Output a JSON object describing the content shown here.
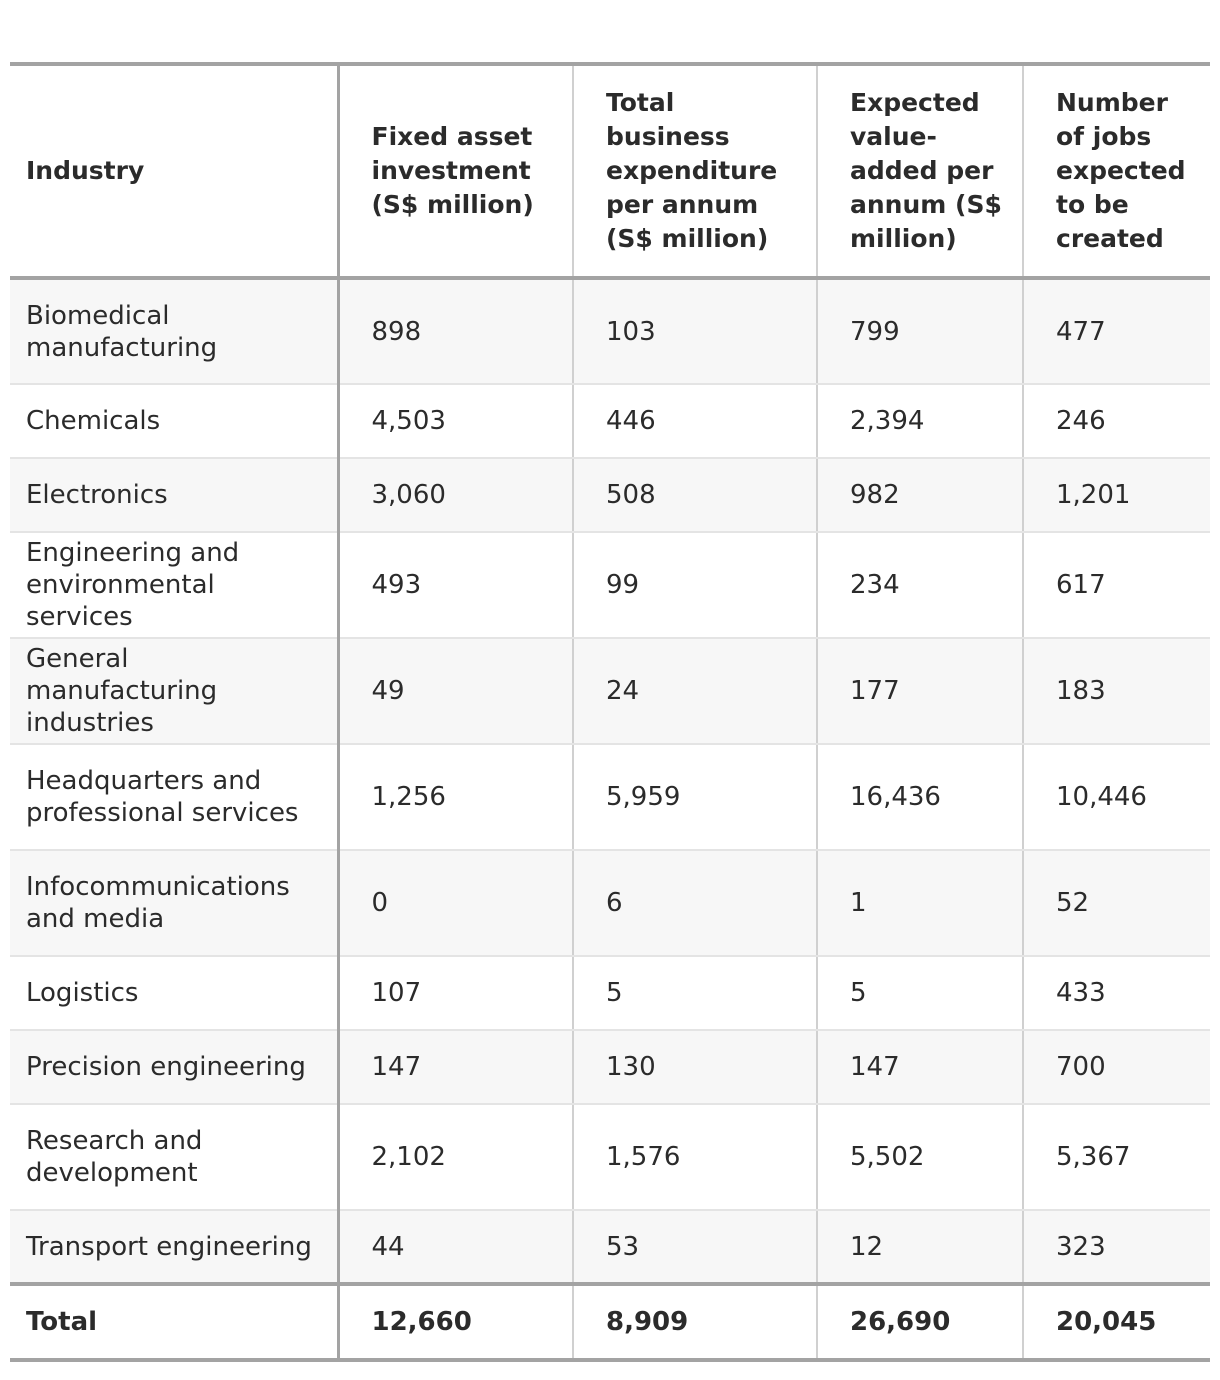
{
  "table": {
    "headers": [
      "Industry",
      "Fixed asset investment (S$ million)",
      "Total business expenditure per annum (S$ million)",
      "Expected value-added per annum (S$ million)",
      "Number of jobs expected to be created"
    ],
    "rows": [
      {
        "industry": "Biomedical manufacturing",
        "fai": "898",
        "tbe": "103",
        "eva": "799",
        "jobs": "477"
      },
      {
        "industry": "Chemicals",
        "fai": "4,503",
        "tbe": "446",
        "eva": "2,394",
        "jobs": "246"
      },
      {
        "industry": "Electronics",
        "fai": "3,060",
        "tbe": "508",
        "eva": "982",
        "jobs": "1,201"
      },
      {
        "industry": "Engineering and environmental services",
        "fai": "493",
        "tbe": "99",
        "eva": "234",
        "jobs": "617"
      },
      {
        "industry": "General manufacturing industries",
        "fai": "49",
        "tbe": "24",
        "eva": "177",
        "jobs": "183"
      },
      {
        "industry": "Headquarters and professional services",
        "fai": "1,256",
        "tbe": "5,959",
        "eva": "16,436",
        "jobs": "10,446"
      },
      {
        "industry": "Infocommunications and media",
        "fai": "0",
        "tbe": "6",
        "eva": "1",
        "jobs": "52"
      },
      {
        "industry": "Logistics",
        "fai": "107",
        "tbe": "5",
        "eva": "5",
        "jobs": "433"
      },
      {
        "industry": "Precision engineering",
        "fai": "147",
        "tbe": "130",
        "eva": "147",
        "jobs": "700"
      },
      {
        "industry": "Research and development",
        "fai": "2,102",
        "tbe": "1,576",
        "eva": "5,502",
        "jobs": "5,367"
      },
      {
        "industry": "Transport engineering",
        "fai": "44",
        "tbe": "53",
        "eva": "12",
        "jobs": "323"
      }
    ],
    "total": {
      "label": "Total",
      "fai": "12,660",
      "tbe": "8,909",
      "eva": "26,690",
      "jobs": "20,045"
    }
  }
}
